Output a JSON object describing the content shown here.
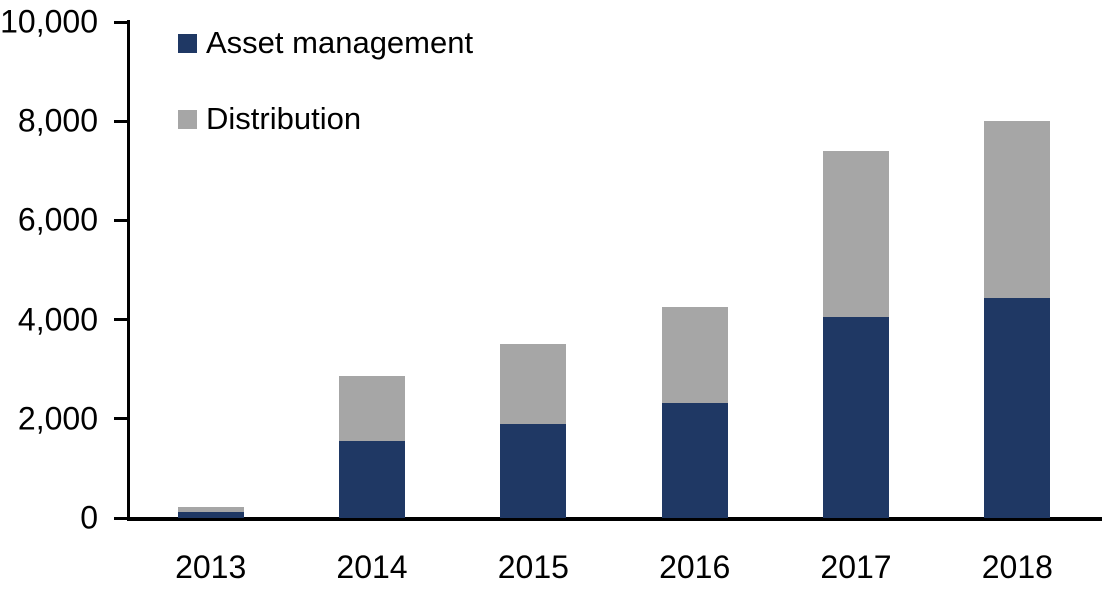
{
  "chart_data": {
    "type": "bar",
    "stacked": true,
    "title": "",
    "xlabel": "",
    "ylabel": "",
    "categories": [
      "2013",
      "2014",
      "2015",
      "2016",
      "2017",
      "2018"
    ],
    "series": [
      {
        "name": "Asset management",
        "color": "#1f3864",
        "values": [
          120,
          1550,
          1900,
          2320,
          4050,
          4430
        ]
      },
      {
        "name": "Distribution",
        "color": "#a6a6a6",
        "values": [
          100,
          1320,
          1600,
          1930,
          3350,
          3570
        ]
      }
    ],
    "totals": [
      220,
      2870,
      3500,
      4250,
      7400,
      8000
    ],
    "ylim": [
      0,
      10000
    ],
    "yticks": [
      0,
      2000,
      4000,
      6000,
      8000,
      10000
    ],
    "ytick_labels": [
      "0",
      "2,000",
      "4,000",
      "6,000",
      "8,000",
      "10,000"
    ],
    "grid": false,
    "legend_position": "top-left-inside",
    "axis_color": "#000000",
    "background_color": "#ffffff"
  }
}
